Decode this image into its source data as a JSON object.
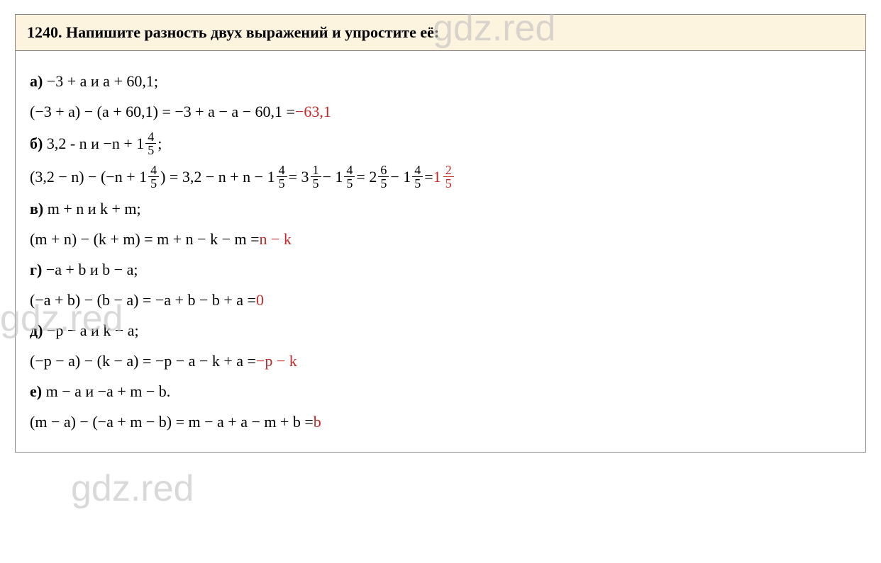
{
  "header": {
    "number": "1240.",
    "title": "Напишите разность двух выражений и упростите её:"
  },
  "items": {
    "a": {
      "label": "а)",
      "given": "−3 + а и а + 60,1;",
      "solution_prefix": "(−3 + a) − (а + 60,1) = −3 + а − а − 60,1 = ",
      "answer": "−63,1"
    },
    "b": {
      "label": "б)",
      "given_prefix": "3,2 - n и −n + 1",
      "frac1_num": "4",
      "frac1_den": "5",
      "given_suffix": ";",
      "sol_p1": "(3,2 − n) − (−n + 1",
      "sol_p2": ") = 3,2 − n + n − 1",
      "sol_p3": "= 3",
      "frac2_num": "1",
      "frac2_den": "5",
      "sol_p4": "− 1",
      "sol_p5": "= 2",
      "frac3_num": "6",
      "frac3_den": "5",
      "sol_p6": "− 1",
      "sol_p7": "= ",
      "ans_whole": "1",
      "ans_num": "2",
      "ans_den": "5"
    },
    "v": {
      "label": "в)",
      "given": "m + n и k + m;",
      "solution_prefix": "(m + n) − (k + m) = m + n − k − m = ",
      "answer": "n − k"
    },
    "g": {
      "label": "г)",
      "given": "−a + b и b − a;",
      "solution_prefix": "(−a + b) − (b − a) = −a + b − b + a = ",
      "answer": "0"
    },
    "d": {
      "label": "д)",
      "given": "−p − a и k − a;",
      "solution_prefix": "(−p − a) − (k − a) = −p − a − k + a = ",
      "answer": "−p − k"
    },
    "e": {
      "label": "е)",
      "given": "m − a и −a + m − b.",
      "solution_prefix": "(m − a) − (−a + m − b) = m − a + a − m + b = ",
      "answer": "b"
    }
  },
  "watermark": "gdz.red",
  "colors": {
    "header_bg": "#fdf4df",
    "border": "#888888",
    "text": "#000000",
    "answer": "#c62828",
    "watermark": "#c0c0c0"
  }
}
